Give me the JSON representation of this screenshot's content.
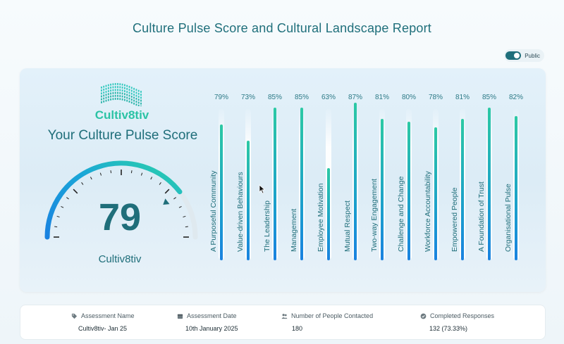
{
  "page": {
    "title": "Culture Pulse Score and Cultural Landscape Report"
  },
  "toggle": {
    "label": "Public",
    "on": true
  },
  "logo": {
    "text": "Cultiv8tiv"
  },
  "score_panel": {
    "title": "Your Culture Pulse Score",
    "score": "79",
    "score_fraction": 0.79,
    "org": "Cultiv8tiv"
  },
  "bars": [
    {
      "label": "A Purposeful Community",
      "pct": "79%",
      "value": 79
    },
    {
      "label": "Value-driven Behaviours",
      "pct": "73%",
      "value": 73
    },
    {
      "label": "The Leadership",
      "pct": "85%",
      "value": 85
    },
    {
      "label": "Management",
      "pct": "85%",
      "value": 85
    },
    {
      "label": "Employee Motivation",
      "pct": "63%",
      "value": 63
    },
    {
      "label": "Mutual Respect",
      "pct": "87%",
      "value": 87
    },
    {
      "label": "Two-way Engagement",
      "pct": "81%",
      "value": 81
    },
    {
      "label": "Challenge and Change",
      "pct": "80%",
      "value": 80
    },
    {
      "label": "Workforce Accountability",
      "pct": "78%",
      "value": 78
    },
    {
      "label": "Empowered People",
      "pct": "81%",
      "value": 81
    },
    {
      "label": "A Foundation of Trust",
      "pct": "85%",
      "value": 85
    },
    {
      "label": "Organisational Pulse",
      "pct": "82%",
      "value": 82
    }
  ],
  "info": [
    {
      "icon": "tag-icon",
      "label": "Assessment Name",
      "value": "Cultiv8tiv- Jan 25"
    },
    {
      "icon": "calendar-icon",
      "label": "Assessment Date",
      "value": "10th January 2025"
    },
    {
      "icon": "people-icon",
      "label": "Number of People Contacted",
      "value": "180"
    },
    {
      "icon": "check-circle-icon",
      "label": "Completed Responses",
      "value": "132 (73.33%)"
    }
  ],
  "colors": {
    "accent": "#1f6f7b",
    "bar_top": "#2cc9a4",
    "bar_bottom": "#1a82e0",
    "logo": "#2cc3a5"
  }
}
